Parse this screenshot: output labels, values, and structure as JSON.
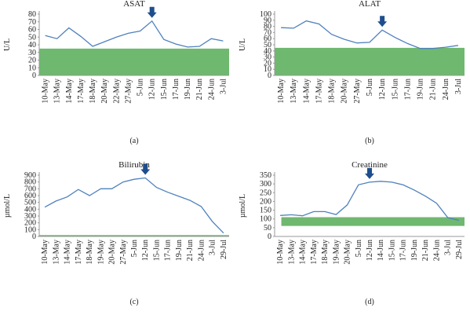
{
  "chart_data": [
    {
      "type": "line",
      "title": "ASAT",
      "y_label": "U/L",
      "panel_label": "(a)",
      "categories": [
        "10-May",
        "13-May",
        "14-May",
        "17-May",
        "18-May",
        "20-May",
        "22-May",
        "27-May",
        "5-Jun",
        "12-Jun",
        "15-Jun",
        "17-Jun",
        "19-Jun",
        "21-Jun",
        "24-Jun",
        "3-Jul"
      ],
      "values": [
        52,
        48,
        62,
        51,
        38,
        44,
        50,
        55,
        58,
        71,
        47,
        41,
        37,
        38,
        48,
        45
      ],
      "color": "#4f81bd",
      "ylim": [
        0,
        80
      ],
      "yticks": [
        0,
        10,
        20,
        30,
        40,
        50,
        60,
        70,
        80
      ],
      "reference_band": [
        0,
        35
      ],
      "band_color": "#6fb86f",
      "arrow": "12-Jun"
    },
    {
      "type": "line",
      "title": "ALAT",
      "y_label": "U/L",
      "panel_label": "(b)",
      "categories": [
        "10-May",
        "13-May",
        "14-May",
        "17-May",
        "18-May",
        "20-May",
        "27-May",
        "5-Jun",
        "12-Jun",
        "15-Jun",
        "17-Jun",
        "19-Jun",
        "21-Jun",
        "24-Jun",
        "3-Jul"
      ],
      "values": [
        78,
        77,
        89,
        84,
        67,
        59,
        53,
        54,
        74,
        62,
        52,
        44,
        44,
        46,
        49
      ],
      "color": "#4f81bd",
      "ylim": [
        0,
        100
      ],
      "yticks": [
        0,
        10,
        20,
        30,
        40,
        50,
        60,
        70,
        80,
        90,
        100
      ],
      "reference_band": [
        0,
        45
      ],
      "band_color": "#6fb86f",
      "arrow": "12-Jun"
    },
    {
      "type": "line",
      "title": "Bilirubin",
      "y_label": "µmol/L",
      "panel_label": "(c)",
      "categories": [
        "10-May",
        "13-May",
        "14-May",
        "17-May",
        "18-May",
        "19-May",
        "20-May",
        "27-May",
        "5-Jun",
        "12-Jun",
        "15-Jun",
        "17-Jun",
        "19-Jun",
        "21-Jun",
        "24-Jun",
        "3-Jul",
        "29-Jul"
      ],
      "values": [
        430,
        520,
        580,
        690,
        600,
        700,
        700,
        800,
        840,
        860,
        720,
        650,
        590,
        530,
        440,
        220,
        50
      ],
      "color": "#4f81bd",
      "ylim": [
        0,
        900
      ],
      "yticks": [
        0,
        100,
        200,
        300,
        400,
        500,
        600,
        700,
        800,
        900
      ],
      "reference_band": [
        0,
        20
      ],
      "band_color": "#6fb86f",
      "arrow": "12-Jun"
    },
    {
      "type": "line",
      "title": "Creatinine",
      "y_label": "µmol/L",
      "panel_label": "(d)",
      "categories": [
        "10-May",
        "13-May",
        "14-May",
        "17-May",
        "18-May",
        "19-May",
        "20-May",
        "5-Jun",
        "12-Jun",
        "14-Jun",
        "15-Jun",
        "17-Jun",
        "19-Jun",
        "21-Jun",
        "24-Jun",
        "3-Jul",
        "29-Jul"
      ],
      "values": [
        120,
        124,
        118,
        142,
        142,
        125,
        180,
        295,
        310,
        315,
        310,
        295,
        265,
        230,
        190,
        108,
        92
      ],
      "color": "#4f81bd",
      "ylim": [
        0,
        350
      ],
      "yticks": [
        0,
        50,
        100,
        150,
        200,
        250,
        300,
        350
      ],
      "reference_band": [
        60,
        110
      ],
      "band_color": "#6fb86f",
      "arrow": "12-Jun"
    }
  ]
}
